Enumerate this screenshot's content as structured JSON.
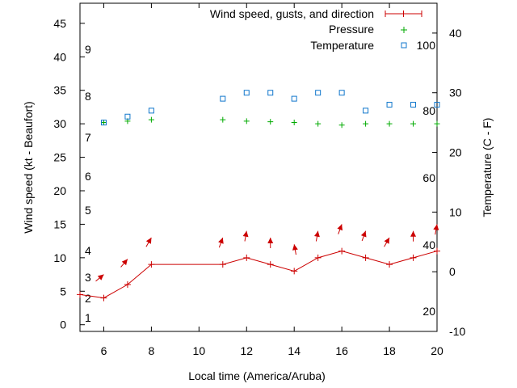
{
  "chart_data": {
    "type": "line",
    "xlabel": "Local time (America/Aruba)",
    "ylabel": "Wind speed (kt - Beaufort)",
    "y2label": "Temperature (C - F)",
    "xlim": [
      5,
      20
    ],
    "ylim": [
      -1,
      48
    ],
    "y2lim": [
      -10,
      45
    ],
    "x_ticks": [
      "6",
      "8",
      "10",
      "12",
      "14",
      "16",
      "18",
      "20"
    ],
    "y_ticks": [
      "0",
      "5",
      "10",
      "15",
      "20",
      "25",
      "30",
      "35",
      "40",
      "45"
    ],
    "y2_ticks": [
      "-10",
      "0",
      "10",
      "20",
      "30",
      "40"
    ],
    "beaufort_labels": [
      "1",
      "2",
      "3",
      "4",
      "5",
      "6",
      "7",
      "8",
      "9"
    ],
    "fahrenheit_labels": [
      "20",
      "40",
      "60",
      "80",
      "100"
    ],
    "legend": {
      "position": "top-right",
      "entries": [
        "Wind speed, gusts, and direction",
        "Pressure",
        "Temperature"
      ]
    },
    "grid": false,
    "series": [
      {
        "name": "Wind speed, gusts, and direction",
        "color": "#cc0000",
        "style": "line+cross",
        "x": [
          5,
          6,
          7,
          8,
          11,
          12,
          13,
          14,
          15,
          16,
          17,
          18,
          19,
          20
        ],
        "y": [
          4.5,
          4,
          6,
          9,
          9,
          10,
          9,
          8,
          10,
          11,
          10,
          9,
          10,
          11
        ]
      },
      {
        "name": "Wind direction arrows",
        "color": "#cc0000",
        "x": [
          6,
          7,
          8,
          11,
          12,
          13,
          14,
          15,
          16,
          17,
          18,
          19,
          20
        ],
        "y": [
          7.5,
          9.8,
          13,
          13,
          14,
          13,
          12,
          14,
          15,
          14,
          13,
          14,
          15
        ],
        "direction_deg": [
          140,
          130,
          120,
          110,
          100,
          90,
          80,
          100,
          110,
          110,
          120,
          90,
          100
        ]
      },
      {
        "name": "Pressure",
        "color": "#00aa00",
        "style": "plus",
        "x": [
          6,
          7,
          8,
          11,
          12,
          13,
          14,
          15,
          16,
          17,
          18,
          19,
          20
        ],
        "y": [
          30.2,
          30.4,
          30.6,
          30.6,
          30.4,
          30.3,
          30.2,
          30.0,
          29.8,
          30.0,
          30.0,
          30.0,
          30.0
        ]
      },
      {
        "name": "Temperature",
        "color": "#1177cc",
        "style": "square",
        "x": [
          6,
          7,
          8,
          11,
          12,
          13,
          14,
          15,
          16,
          17,
          18,
          19,
          20
        ],
        "y": [
          25,
          26,
          27,
          29,
          30,
          30,
          29,
          30,
          30,
          27,
          28,
          28,
          28
        ]
      }
    ]
  }
}
